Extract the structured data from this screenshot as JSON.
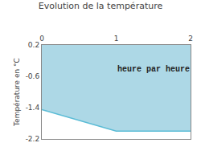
{
  "chart_data": {
    "type": "area",
    "title": "Evolution de la température",
    "ylabel": "Température en °C",
    "annotation": "heure par heure",
    "series": [
      {
        "type": "area",
        "color": "#add8e6",
        "x": [
          0,
          0,
          1,
          2,
          2,
          0
        ],
        "values": [
          0.2,
          -1.45,
          -2.0,
          -2.0,
          0.2,
          0.2
        ]
      },
      {
        "type": "line",
        "color": "#5bbcd6",
        "x": [
          0,
          1,
          2
        ],
        "values": [
          -1.45,
          -2.0,
          -2.0
        ]
      }
    ],
    "xlim": [
      0,
      2
    ],
    "xticks": [
      0,
      1,
      2
    ],
    "ylim": [
      -2.2,
      0.2
    ],
    "yticks": [
      0.2,
      -0.6,
      -1.4,
      -2.2
    ],
    "grid": "y"
  }
}
